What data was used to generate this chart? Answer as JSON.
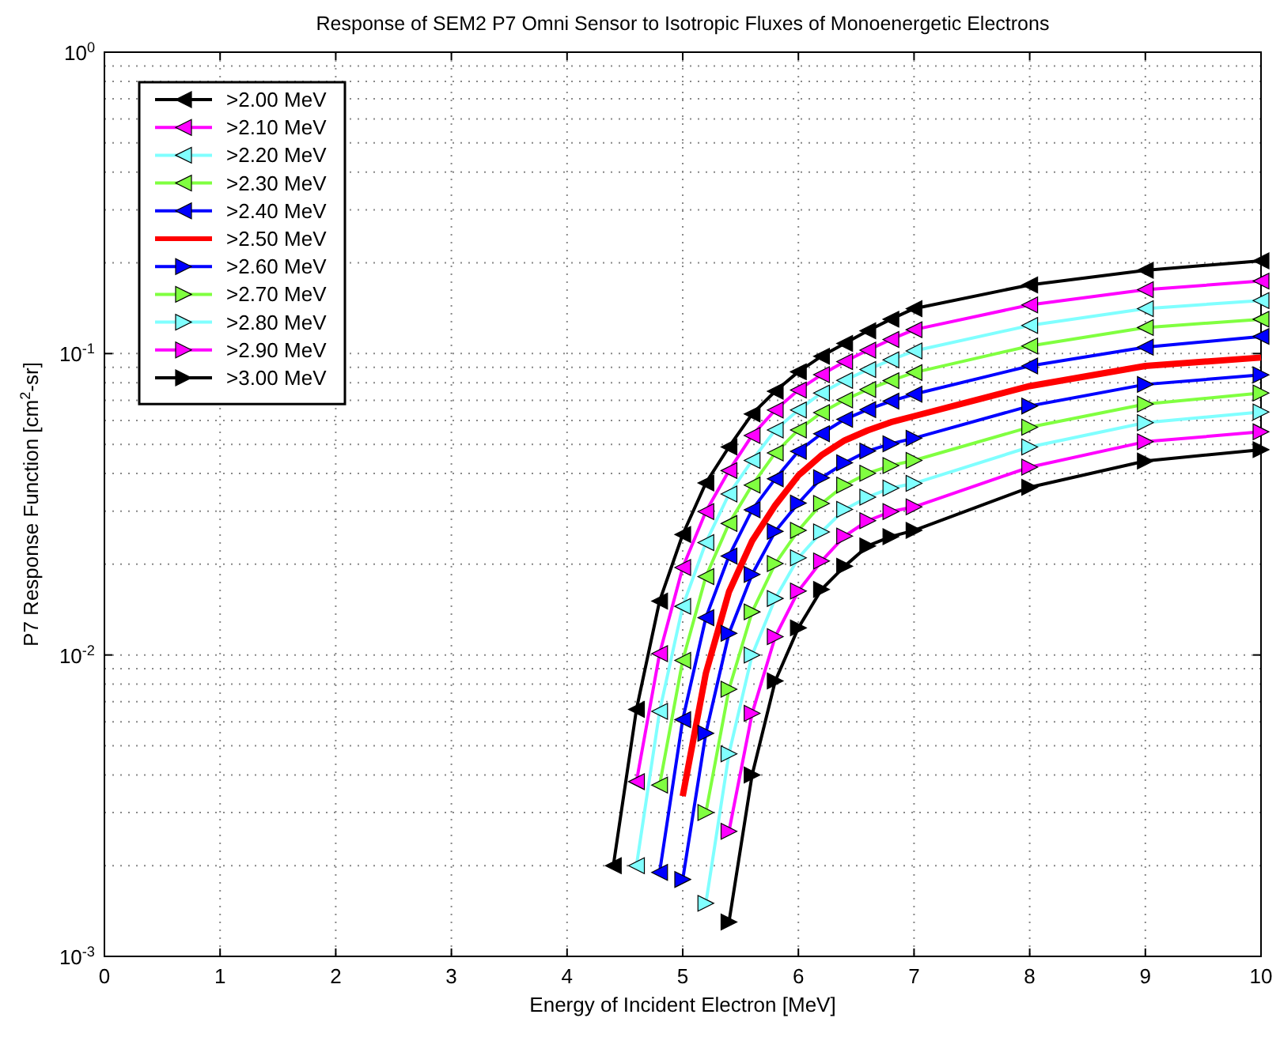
{
  "chart_data": {
    "type": "line",
    "title": "Response of SEM2 P7 Omni Sensor to Isotropic Fluxes of Monoenergetic Electrons",
    "xlabel": "Energy of Incident Electron [MeV]",
    "ylabel": "P7 Response Function [cm$^{2}$-sr]",
    "x": [
      4.4,
      4.6,
      4.8,
      5.0,
      5.2,
      5.4,
      5.6,
      5.8,
      6.0,
      6.2,
      6.4,
      6.6,
      6.8,
      7.0,
      8,
      9,
      10
    ],
    "series": [
      {
        "name": ">2.00 MeV",
        "color": "#000000",
        "marker": "triangle-left",
        "values": [
          0.002,
          0.0066,
          0.0151,
          0.0251,
          0.0372,
          0.049,
          0.063,
          0.075,
          0.087,
          0.098,
          0.108,
          0.119,
          0.13,
          0.141,
          0.169,
          0.189,
          0.203
        ]
      },
      {
        "name": ">2.10 MeV",
        "color": "#ff00ff",
        "marker": "triangle-left",
        "values": [
          null,
          0.0038,
          0.0101,
          0.0195,
          0.0299,
          0.0409,
          0.0535,
          0.065,
          0.0757,
          0.0851,
          0.094,
          0.1026,
          0.1114,
          0.12,
          0.145,
          0.163,
          0.174
        ]
      },
      {
        "name": ">2.20 MeV",
        "color": "#80ffff",
        "marker": "triangle-left",
        "values": [
          null,
          0.002,
          0.0065,
          0.0145,
          0.0236,
          0.0342,
          0.0442,
          0.0558,
          0.065,
          0.074,
          0.0815,
          0.0885,
          0.0953,
          0.102,
          0.124,
          0.141,
          0.15
        ]
      },
      {
        "name": ">2.30 MeV",
        "color": "#80ff40",
        "marker": "triangle-left",
        "values": [
          null,
          null,
          0.0037,
          0.0096,
          0.0182,
          0.0273,
          0.0366,
          0.0468,
          0.0558,
          0.0637,
          0.0702,
          0.076,
          0.0813,
          0.0865,
          0.106,
          0.122,
          0.13
        ]
      },
      {
        "name": ">2.40 MeV",
        "color": "#0000ff",
        "marker": "triangle-left",
        "values": [
          null,
          null,
          0.0019,
          0.0061,
          0.0133,
          0.0213,
          0.0303,
          0.0384,
          0.0474,
          0.0542,
          0.0605,
          0.0652,
          0.0695,
          0.0733,
          0.091,
          0.105,
          0.114
        ]
      },
      {
        "name": ">2.50 MeV",
        "color": "#ff0000",
        "marker": "none",
        "values": [
          null,
          null,
          null,
          0.0034,
          0.0087,
          0.0162,
          0.0239,
          0.0314,
          0.0394,
          0.046,
          0.0515,
          0.0556,
          0.0592,
          0.062,
          0.078,
          0.091,
          0.097
        ]
      },
      {
        "name": ">2.60 MeV",
        "color": "#0000ff",
        "marker": "triangle-right",
        "values": [
          null,
          null,
          null,
          0.0018,
          0.0055,
          0.0118,
          0.0185,
          0.0257,
          0.0319,
          0.0387,
          0.0434,
          0.0475,
          0.0502,
          0.0524,
          0.067,
          0.079,
          0.085
        ]
      },
      {
        "name": ">2.70 MeV",
        "color": "#80ff40",
        "marker": "triangle-right",
        "values": [
          null,
          null,
          null,
          null,
          0.003,
          0.0077,
          0.0139,
          0.0201,
          0.0259,
          0.0318,
          0.0366,
          0.0401,
          0.0425,
          0.0442,
          0.057,
          0.068,
          0.074
        ]
      },
      {
        "name": ">2.80 MeV",
        "color": "#80ffff",
        "marker": "triangle-right",
        "values": [
          null,
          null,
          null,
          null,
          0.0015,
          0.0047,
          0.01,
          0.0154,
          0.021,
          0.0256,
          0.0304,
          0.0334,
          0.0358,
          0.0371,
          0.049,
          0.059,
          0.064
        ]
      },
      {
        "name": ">2.90 MeV",
        "color": "#ff00ff",
        "marker": "triangle-right",
        "values": [
          null,
          null,
          null,
          null,
          null,
          0.0026,
          0.0064,
          0.0115,
          0.0163,
          0.0205,
          0.0248,
          0.0279,
          0.0299,
          0.031,
          0.042,
          0.051,
          0.055
        ]
      },
      {
        "name": ">3.00 MeV",
        "color": "#000000",
        "marker": "triangle-right",
        "values": [
          null,
          null,
          null,
          null,
          null,
          0.0013,
          0.004,
          0.0082,
          0.0123,
          0.0165,
          0.0197,
          0.023,
          0.0247,
          0.0259,
          0.036,
          0.044,
          0.048
        ]
      }
    ],
    "xlim": [
      0,
      10
    ],
    "xticks": [
      0,
      1,
      2,
      3,
      4,
      5,
      6,
      7,
      8,
      9,
      10
    ],
    "ylim": [
      0.001,
      1
    ],
    "yticks": [
      {
        "value": 0.001,
        "label": "10$^{-3}$"
      },
      {
        "value": 0.01,
        "label": "10$^{-2}$"
      },
      {
        "value": 0.1,
        "label": "10$^{-1}$"
      },
      {
        "value": 1,
        "label": "10$^{0}$"
      }
    ],
    "log": "y",
    "grid": true,
    "legend": "top left",
    "line_style": "solid"
  }
}
